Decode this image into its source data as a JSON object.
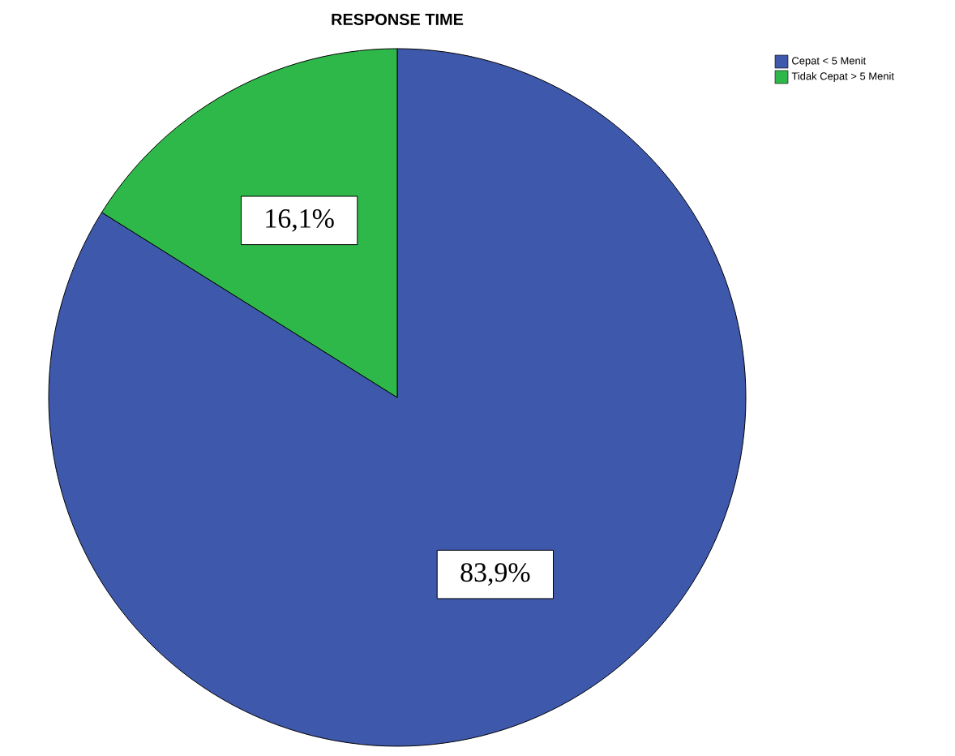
{
  "chart_data": {
    "type": "pie",
    "title": "RESPONSE TIME",
    "categories": [
      "Cepat < 5 Menit",
      "Tidak Cepat > 5 Menit"
    ],
    "values": [
      83.9,
      16.1
    ],
    "colors": [
      "#3e58ac",
      "#2fb84a"
    ],
    "value_labels": [
      "83,9%",
      "16,1%"
    ],
    "legend": "top right"
  }
}
